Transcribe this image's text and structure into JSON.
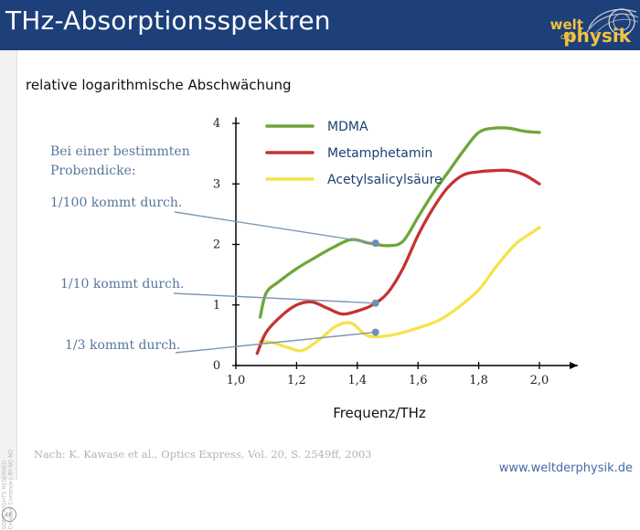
{
  "header": {
    "title": "THz-Absorptionsspektren",
    "logo": {
      "line1": "welt",
      "line2": "physik",
      "line3": "der",
      "icon": "globe-arc-logo-icon"
    }
  },
  "sidebar": {
    "copyright_line1": "SOME RIGHTS RESERVED",
    "copyright_line2": "Creative Commons BY-NC-ND",
    "cc_icon": "cc"
  },
  "chart_data": {
    "type": "line",
    "title": "",
    "xlabel": "Frequenz/THz",
    "ylabel": "relative logarithmische Abschwächung",
    "xlim": [
      1.0,
      2.1
    ],
    "ylim": [
      0,
      4.1
    ],
    "x_ticks": [
      1.0,
      1.2,
      1.4,
      1.6,
      1.8,
      2.0
    ],
    "x_tick_labels": [
      "1,0",
      "1,2",
      "1,4",
      "1,6",
      "1,8",
      "2,0"
    ],
    "y_ticks": [
      0,
      1,
      2,
      3,
      4
    ],
    "y_tick_labels": [
      "0",
      "1",
      "2",
      "3",
      "4"
    ],
    "legend": {
      "placement": "top-left inside plot"
    },
    "series": [
      {
        "name": "MDMA",
        "color": "#6ea63a",
        "x": [
          1.08,
          1.1,
          1.14,
          1.2,
          1.26,
          1.32,
          1.38,
          1.44,
          1.5,
          1.55,
          1.6,
          1.65,
          1.7,
          1.75,
          1.8,
          1.85,
          1.9,
          1.95,
          2.0
        ],
        "y": [
          0.8,
          1.2,
          1.38,
          1.6,
          1.78,
          1.95,
          2.08,
          2.02,
          1.98,
          2.05,
          2.45,
          2.85,
          3.2,
          3.55,
          3.85,
          3.92,
          3.92,
          3.87,
          3.85
        ]
      },
      {
        "name": "Metamphetamin",
        "color": "#c43331",
        "x": [
          1.07,
          1.1,
          1.15,
          1.2,
          1.25,
          1.3,
          1.35,
          1.4,
          1.45,
          1.5,
          1.55,
          1.6,
          1.65,
          1.7,
          1.75,
          1.8,
          1.85,
          1.9,
          1.95,
          2.0
        ],
        "y": [
          0.2,
          0.55,
          0.82,
          1.0,
          1.05,
          0.95,
          0.85,
          0.9,
          1.0,
          1.2,
          1.6,
          2.15,
          2.6,
          2.95,
          3.15,
          3.2,
          3.22,
          3.22,
          3.15,
          3.0
        ]
      },
      {
        "name": "Acetylsalicylsäure",
        "color": "#f7e24a",
        "x": [
          1.08,
          1.12,
          1.17,
          1.22,
          1.28,
          1.33,
          1.38,
          1.43,
          1.48,
          1.53,
          1.6,
          1.67,
          1.73,
          1.8,
          1.86,
          1.92,
          1.97,
          2.0
        ],
        "y": [
          0.4,
          0.38,
          0.3,
          0.25,
          0.45,
          0.65,
          0.7,
          0.5,
          0.48,
          0.52,
          0.62,
          0.75,
          0.95,
          1.25,
          1.65,
          2.0,
          2.18,
          2.28
        ]
      }
    ],
    "annotations": [
      {
        "text_head": "Bei einer bestimmten",
        "text_head2": "Probendicke:"
      },
      {
        "label": "1/100 kommt durch.",
        "x": 1.46,
        "y": 2.02
      },
      {
        "label": "1/10 kommt durch.",
        "x": 1.46,
        "y": 1.03
      },
      {
        "label": "1/3 kommt durch.",
        "x": 1.46,
        "y": 0.55
      }
    ]
  },
  "source": "Nach: K. Kawase et al., Optics Express, Vol. 20, S. 2549ff, 2003",
  "footer": {
    "url": "www.weltderphysik.de"
  }
}
